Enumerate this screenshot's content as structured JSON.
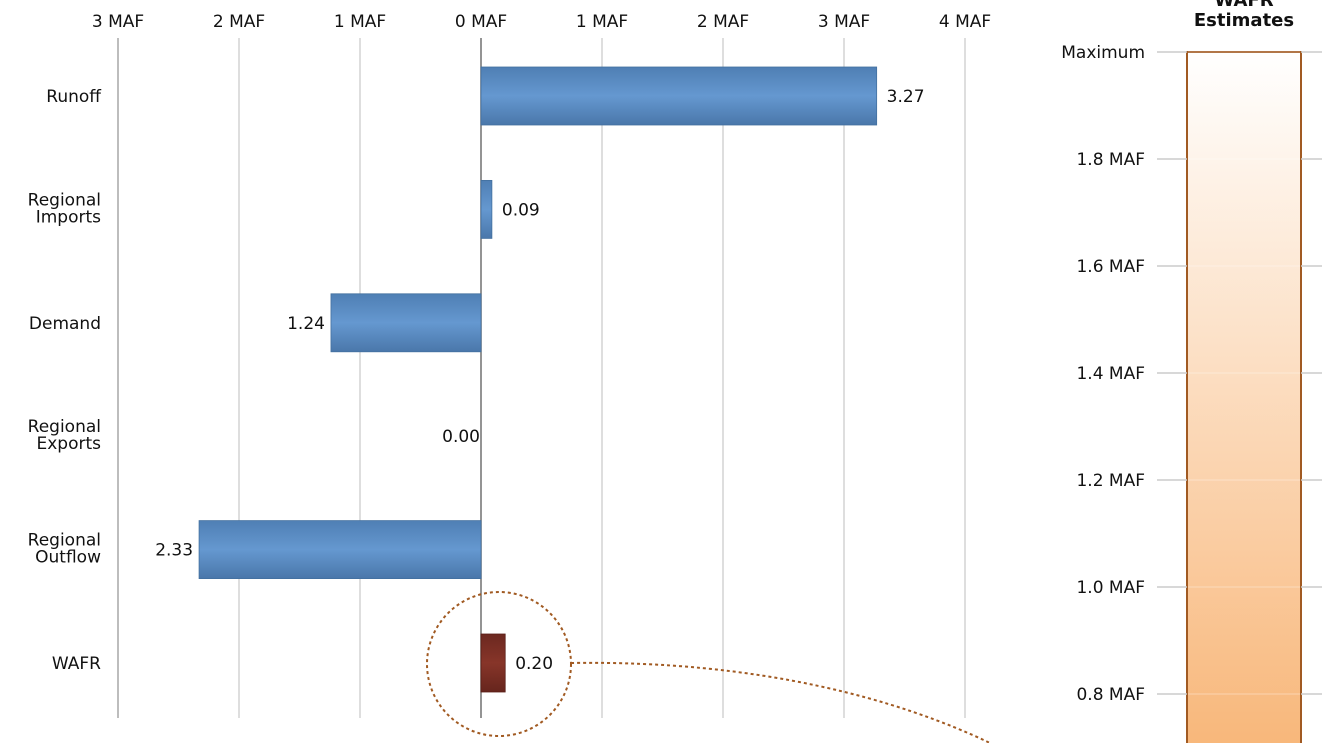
{
  "chart_data": [
    {
      "type": "bar",
      "orientation": "horizontal",
      "x_ticks": [
        {
          "value": -3,
          "label": "3 MAF"
        },
        {
          "value": -2,
          "label": "2 MAF"
        },
        {
          "value": -1,
          "label": "1 MAF"
        },
        {
          "value": 0,
          "label": "0 MAF"
        },
        {
          "value": 1,
          "label": "1 MAF"
        },
        {
          "value": 2,
          "label": "2 MAF"
        },
        {
          "value": 3,
          "label": "3 MAF"
        },
        {
          "value": 4,
          "label": "4 MAF"
        }
      ],
      "xlim": [
        -3,
        4
      ],
      "grid": true,
      "categories": [
        {
          "label": [
            "Runoff"
          ],
          "value": 3.27,
          "value_label": "3.27",
          "color": "#5a8fc7"
        },
        {
          "label": [
            "Regional",
            "Imports"
          ],
          "value": 0.09,
          "value_label": "0.09",
          "color": "#5a8fc7"
        },
        {
          "label": [
            "Demand"
          ],
          "value": -1.24,
          "value_label": "1.24",
          "color": "#5a8fc7"
        },
        {
          "label": [
            "Regional",
            "Exports"
          ],
          "value": 0.0,
          "value_label": "0.00",
          "color": "#5a8fc7"
        },
        {
          "label": [
            "Regional",
            "Outflow"
          ],
          "value": -2.33,
          "value_label": "2.33",
          "color": "#5a8fc7"
        },
        {
          "label": [
            "WAFR"
          ],
          "value": 0.2,
          "value_label": "0.20",
          "color": "#7b2e25"
        }
      ]
    },
    {
      "type": "gradient-scale",
      "title": [
        "WAFR",
        "Estimates"
      ],
      "ticks": [
        {
          "label": "Maximum",
          "value": 2.0
        },
        {
          "label": "1.8 MAF",
          "value": 1.8
        },
        {
          "label": "1.6 MAF",
          "value": 1.6
        },
        {
          "label": "1.4 MAF",
          "value": 1.4
        },
        {
          "label": "1.2 MAF",
          "value": 1.2
        },
        {
          "label": "1.0 MAF",
          "value": 1.0
        },
        {
          "label": "0.8 MAF",
          "value": 0.8
        }
      ],
      "colors": {
        "top": "#ffffff",
        "bottom": "#f8b77a",
        "border": "#a15a22"
      }
    }
  ],
  "annotation": {
    "callout_color": "#a15a22"
  }
}
